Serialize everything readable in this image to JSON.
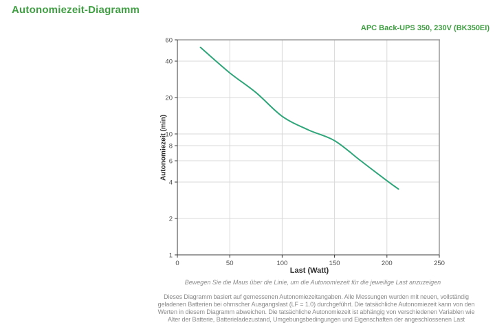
{
  "header": {
    "title": "Autonomiezeit-Diagramm",
    "product_label": "APC Back-UPS 350, 230V (BK350EI)"
  },
  "chart_data": {
    "type": "line",
    "title": "Autonomiezeit-Diagramm",
    "subtitle": "APC Back-UPS 350, 230V (BK350EI)",
    "xlabel": "Last (Watt)",
    "ylabel": "Autonomiezeit (min)",
    "series_name": "Autonomiezeit",
    "x": [
      22,
      50,
      75,
      100,
      125,
      150,
      175,
      200,
      211
    ],
    "y": [
      52,
      32,
      22,
      14,
      10.8,
      8.8,
      6.0,
      4.1,
      3.5
    ],
    "xlim": [
      0,
      250
    ],
    "ylim": [
      1,
      60
    ],
    "y_scale": "log",
    "x_ticks": [
      0,
      50,
      100,
      150,
      200,
      250
    ],
    "y_ticks": [
      1,
      2,
      4,
      6,
      8,
      10,
      20,
      40,
      60
    ],
    "grid": true,
    "legend": false,
    "line_color": "#2fa57a"
  },
  "notes": {
    "hover_instruction": "Bewegen Sie die Maus über die Linie, um die Autonomiezeit für die jeweilige Last anzuzeigen",
    "disclaimer": "Dieses Diagramm basiert auf gemessenen Autonomiezeitangaben. Alle Messungen wurden mit neuen, vollständig geladenen Batterien bei ohmscher Ausgangslast (LF = 1.0) durchgeführt. Die tatsächliche Autonomiezeit kann von den Werten in diesem Diagramm abweichen. Die tatsächliche Autonomiezeit ist abhängig von verschiedenen Variablen wie Alter der Batterie, Batterieladezustand, Umgebungsbedingungen und Eigenschaften der angeschlossenen Last"
  },
  "colors": {
    "heading_green": "#3f9e42",
    "curve_green": "#2fa57a",
    "grid_gray": "#d9d9d9",
    "axis_dark": "#3a3a3a",
    "border_gray": "#9a9a9a",
    "text_gray": "#8a8a8a",
    "tick_text": "#4a4a4a"
  }
}
